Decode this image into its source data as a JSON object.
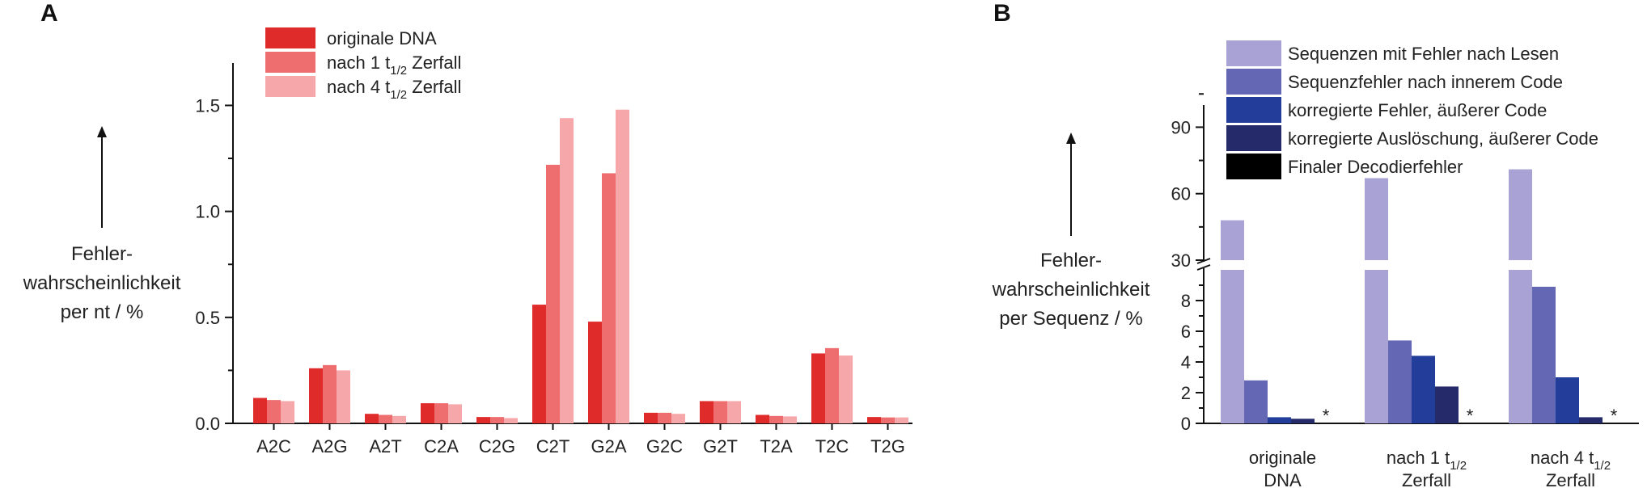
{
  "chart_data": [
    {
      "panel": "A",
      "type": "bar",
      "categories": [
        "A2C",
        "A2G",
        "A2T",
        "C2A",
        "C2G",
        "C2T",
        "G2A",
        "G2C",
        "G2T",
        "T2A",
        "T2C",
        "T2G"
      ],
      "series": [
        {
          "name": "originale DNA",
          "color": "#e02b2b",
          "values": [
            0.12,
            0.26,
            0.045,
            0.095,
            0.03,
            0.56,
            0.48,
            0.05,
            0.105,
            0.04,
            0.33,
            0.03
          ]
        },
        {
          "name_main": "nach 1 t",
          "name_sub": "1/2",
          "name_tail": " Zerfall",
          "color": "#ee6e70",
          "values": [
            0.11,
            0.275,
            0.04,
            0.095,
            0.03,
            1.22,
            1.18,
            0.05,
            0.105,
            0.035,
            0.355,
            0.028
          ]
        },
        {
          "name_main": "nach 4 t",
          "name_sub": "1/2",
          "name_tail": " Zerfall",
          "color": "#f6a7aa",
          "values": [
            0.105,
            0.25,
            0.035,
            0.09,
            0.025,
            1.44,
            1.48,
            0.045,
            0.105,
            0.033,
            0.32,
            0.028
          ]
        }
      ],
      "ylim": [
        0,
        1.7
      ],
      "yticks": [
        "0.0",
        "0.5",
        "1.0",
        "1.5"
      ],
      "ylabel": [
        "Fehler-",
        "wahrscheinlichkeit",
        "per nt  / %"
      ]
    },
    {
      "panel": "B",
      "type": "bar",
      "categories": [
        [
          "originale",
          "DNA"
        ],
        [
          "nach 1 t",
          "Zerfall"
        ],
        [
          "nach 4 t",
          "Zerfall"
        ]
      ],
      "category_sub": [
        "",
        "1/2",
        "1/2"
      ],
      "series": [
        {
          "name": "Sequenzen mit Fehler nach Lesen",
          "color": "#a8a3d4",
          "values": [
            48,
            67,
            71
          ]
        },
        {
          "name": "Sequenzfehler nach innerem Code",
          "color": "#6467b3",
          "values": [
            2.8,
            5.4,
            8.9
          ]
        },
        {
          "name": "korregierte Fehler, äußerer Code",
          "color": "#233e9a",
          "values": [
            0.4,
            4.4,
            3.0
          ]
        },
        {
          "name": "korregierte Auslöschung, äußerer Code",
          "color": "#252a6b",
          "values": [
            0.3,
            2.4,
            0.4
          ]
        },
        {
          "name": "Finaler Decodierfehler",
          "color": "#000000",
          "values": [
            0,
            0,
            0
          ]
        }
      ],
      "marker": "*",
      "yticks_lower": [
        "0",
        "2",
        "4",
        "6",
        "8"
      ],
      "yticks_upper": [
        "30",
        "60",
        "90"
      ],
      "y_break": [
        10,
        30
      ],
      "ylim_lower": [
        0,
        10
      ],
      "ylim_upper": [
        30,
        100
      ],
      "ylabel": [
        "Fehler-",
        "wahrscheinlichkeit",
        "per Sequenz / %"
      ]
    }
  ]
}
